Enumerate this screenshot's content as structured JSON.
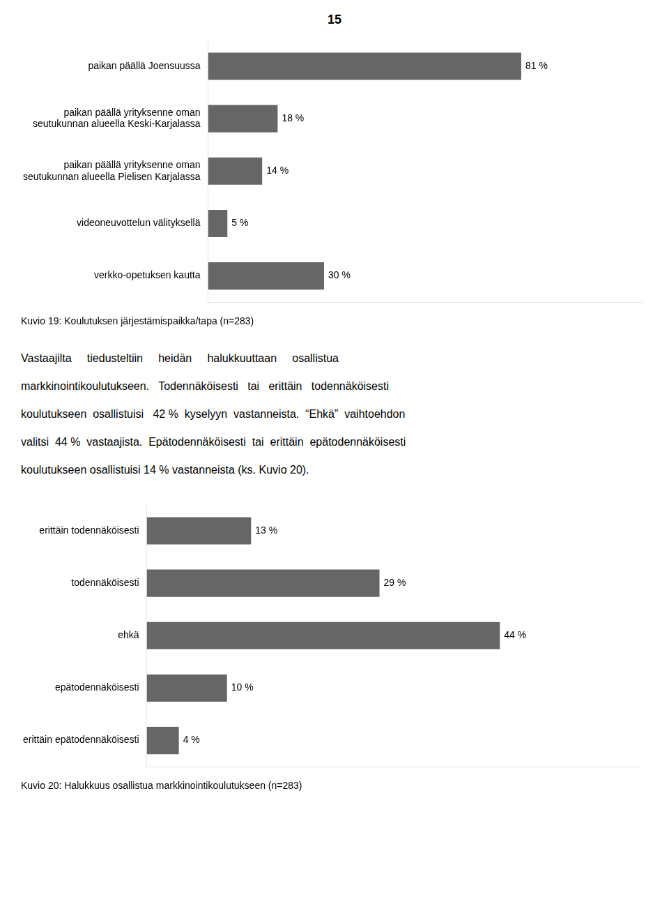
{
  "page_number": "15",
  "text_lines": [
    "Vastaajilta     tiedusteltiin     heidän     halukkuuttaan     osallistua",
    "markkinointikoulutukseen.   Todennäköisesti   tai   erittäin   todennäköisesti",
    "koulutukseen  osallistuisi   42 %  kyselyyn  vastanneista.  “Ehkä”  vaihtoehdon",
    "valitsi  44 %  vastaajista.  Epätodennäköisesti  tai  erittäin  epätodennäköisesti",
    "koulutukseen osallistuisi 14 % vastanneista (ks. Kuvio 20)."
  ],
  "chart_data": [
    {
      "type": "bar",
      "orientation": "horizontal",
      "title": "Kuvio 19: Koulutuksen järjestämispaikka/tapa (n=283)",
      "categories": [
        "paikan päällä Joensuussa",
        "paikan päällä yrityksenne oman\nseutukunnan alueella Keski-Karjalassa",
        "paikan päällä yrityksenne oman\nseutukunnan alueella Pielisen Karjalassa",
        "videoneuvottelun välityksellä",
        "verkko-opetuksen kautta"
      ],
      "values": [
        81,
        18,
        14,
        5,
        30
      ],
      "value_labels": [
        "81 %",
        "18 %",
        "14 %",
        "5 %",
        "30 %"
      ],
      "data_labels": true,
      "color": "#666666",
      "xlim": [
        0,
        112
      ],
      "grid": false,
      "tick_labels": "y"
    },
    {
      "type": "bar",
      "orientation": "horizontal",
      "title": "Kuvio 20: Halukkuus osallistua markkinointikoulutukseen (n=283)",
      "categories": [
        "erittäin todennäköisesti",
        "todennäköisesti",
        "ehkä",
        "epätodennäköisesti",
        "erittäin epätodennäköisesti"
      ],
      "values": [
        13,
        29,
        44,
        10,
        4
      ],
      "value_labels": [
        "13 %",
        "29 %",
        "44 %",
        "10 %",
        "4 %"
      ],
      "data_labels": true,
      "color": "#666666",
      "xlim": [
        0,
        61.6
      ],
      "grid": false,
      "tick_labels": "y"
    }
  ]
}
